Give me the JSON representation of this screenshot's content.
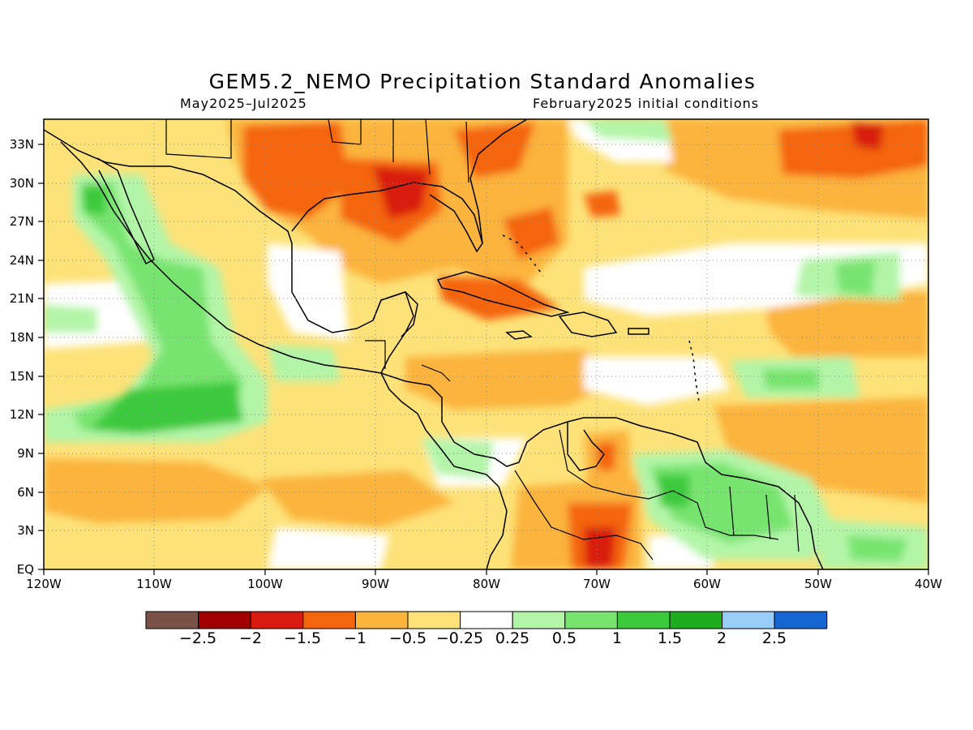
{
  "title": "GEM5.2_NEMO Precipitation Standard Anomalies",
  "period": "May2025–Jul2025",
  "init": "February2025 initial conditions",
  "lat_labels": [
    "33N",
    "30N",
    "27N",
    "24N",
    "21N",
    "18N",
    "15N",
    "12N",
    "9N",
    "6N",
    "3N",
    "EQ"
  ],
  "lon_labels": [
    "120W",
    "110W",
    "100W",
    "90W",
    "80W",
    "70W",
    "60W",
    "50W",
    "40W"
  ],
  "colorbar": {
    "colors": [
      "#7a5248",
      "#a00000",
      "#d81a10",
      "#f4650c",
      "#fbb43c",
      "#fde279",
      "#ffffff",
      "#b3f5a8",
      "#78e470",
      "#3cc93c",
      "#1fad20",
      "#98cdf8",
      "#1566d3"
    ],
    "labels": [
      "−2.5",
      "−2",
      "−1.5",
      "−1",
      "−0.5",
      "−0.25",
      "0.25",
      "0.5",
      "1",
      "1.5",
      "2",
      "2.5"
    ]
  }
}
